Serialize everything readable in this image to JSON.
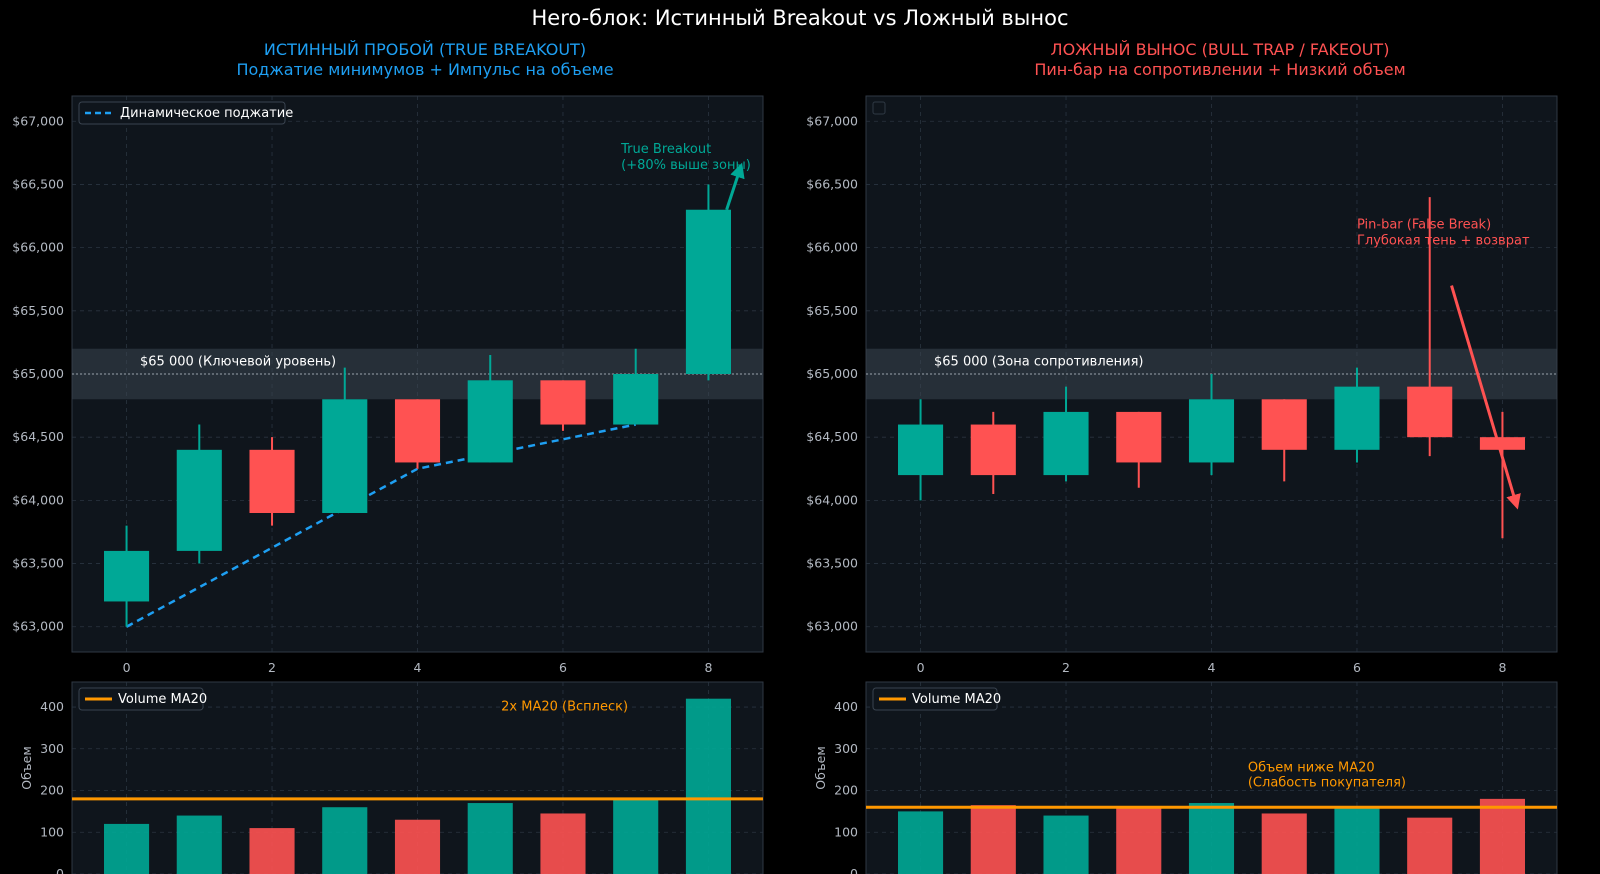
{
  "title": "Hero-блок: Истинный Breakout vs Ложный вынос",
  "colors": {
    "bull": "#00a896",
    "bear": "#ff5252",
    "trend": "#1e9ff2",
    "ma": "#ff9800",
    "panel_bg": "#0f151c",
    "grid": "#2a3440",
    "zone": "#3b4651"
  },
  "chart_data": [
    {
      "type": "candlestick",
      "title": "ИСТИННЫЙ ПРОБОЙ (TRUE BREAKOUT)",
      "subtitle": "Поджатие минимумов + Импульс на объеме",
      "x_ticks": [
        0,
        2,
        4,
        6,
        8
      ],
      "y_ticks": [
        63000,
        63500,
        64000,
        64500,
        65000,
        65500,
        66000,
        66500,
        67000
      ],
      "y_tick_labels": [
        "$63,000",
        "$63,500",
        "$64,000",
        "$64,500",
        "$65,000",
        "$65,500",
        "$66,000",
        "$66,500",
        "$67,000"
      ],
      "xlim": [
        -0.75,
        8.75
      ],
      "ylim": [
        62800,
        67200
      ],
      "candles": [
        {
          "x": 0,
          "open": 63200,
          "high": 63800,
          "low": 63000,
          "close": 63600
        },
        {
          "x": 1,
          "open": 63600,
          "high": 64600,
          "low": 63500,
          "close": 64400
        },
        {
          "x": 2,
          "open": 64400,
          "high": 64500,
          "low": 63800,
          "close": 63900
        },
        {
          "x": 3,
          "open": 63900,
          "high": 65050,
          "low": 63900,
          "close": 64800
        },
        {
          "x": 4,
          "open": 64800,
          "high": 64800,
          "low": 64250,
          "close": 64300
        },
        {
          "x": 5,
          "open": 64300,
          "high": 65150,
          "low": 64300,
          "close": 64950
        },
        {
          "x": 6,
          "open": 64950,
          "high": 64950,
          "low": 64550,
          "close": 64600
        },
        {
          "x": 7,
          "open": 64600,
          "high": 65200,
          "low": 64600,
          "close": 65000
        },
        {
          "x": 8,
          "open": 65000,
          "high": 66500,
          "low": 64950,
          "close": 66300
        }
      ],
      "zone": {
        "low": 64800,
        "high": 65200,
        "level": 65000,
        "label": "$65 000 (Ключевой уровень)"
      },
      "trendline": {
        "label": "Динамическое поджатие",
        "points": [
          [
            0,
            63000
          ],
          [
            4,
            64250
          ],
          [
            7,
            64600
          ]
        ]
      },
      "annotation": {
        "text": [
          "True Breakout",
          "(+80% выше зоны)"
        ],
        "arrow_from": [
          8.25,
          66300
        ],
        "arrow_to": [
          8.45,
          66650
        ]
      },
      "volume": {
        "ylabel": "Объем",
        "y_ticks": [
          0,
          100,
          200,
          300,
          400
        ],
        "ylim": [
          0,
          460
        ],
        "values": [
          120,
          140,
          110,
          160,
          130,
          170,
          145,
          180,
          420
        ],
        "ma_value": 180,
        "ma_label": "Volume MA20",
        "annotation": [
          "2x MA20 (Всплеск)"
        ]
      }
    },
    {
      "type": "candlestick",
      "title": "ЛОЖНЫЙ ВЫНОС (BULL TRAP / FAKEOUT)",
      "subtitle": "Пин-бар на сопротивлении + Низкий объем",
      "x_ticks": [
        0,
        2,
        4,
        6,
        8
      ],
      "y_ticks": [
        63000,
        63500,
        64000,
        64500,
        65000,
        65500,
        66000,
        66500,
        67000
      ],
      "y_tick_labels": [
        "$63,000",
        "$63,500",
        "$64,000",
        "$64,500",
        "$65,000",
        "$65,500",
        "$66,000",
        "$66,500",
        "$67,000"
      ],
      "xlim": [
        -0.75,
        8.75
      ],
      "ylim": [
        62800,
        67200
      ],
      "candles": [
        {
          "x": 0,
          "open": 64200,
          "high": 64800,
          "low": 64000,
          "close": 64600
        },
        {
          "x": 1,
          "open": 64600,
          "high": 64700,
          "low": 64050,
          "close": 64200
        },
        {
          "x": 2,
          "open": 64200,
          "high": 64900,
          "low": 64150,
          "close": 64700
        },
        {
          "x": 3,
          "open": 64700,
          "high": 64700,
          "low": 64100,
          "close": 64300
        },
        {
          "x": 4,
          "open": 64300,
          "high": 65000,
          "low": 64200,
          "close": 64800
        },
        {
          "x": 5,
          "open": 64800,
          "high": 64800,
          "low": 64150,
          "close": 64400
        },
        {
          "x": 6,
          "open": 64400,
          "high": 65050,
          "low": 64300,
          "close": 64900
        },
        {
          "x": 7,
          "open": 64900,
          "high": 66400,
          "low": 64350,
          "close": 64500
        },
        {
          "x": 8,
          "open": 64500,
          "high": 64700,
          "low": 63700,
          "close": 64400
        }
      ],
      "zone": {
        "low": 64800,
        "high": 65200,
        "level": 65000,
        "label": "$65 000 (Зона сопротивления)"
      },
      "annotation": {
        "text": [
          "Pin-bar (False Break)",
          "Глубокая тень + возврат"
        ],
        "arrow_from": [
          7.3,
          65700
        ],
        "arrow_to": [
          8.2,
          63950
        ]
      },
      "volume": {
        "ylabel": "Объем",
        "y_ticks": [
          0,
          100,
          200,
          300,
          400
        ],
        "ylim": [
          0,
          460
        ],
        "values": [
          150,
          165,
          140,
          160,
          170,
          145,
          160,
          135,
          180
        ],
        "ma_value": 160,
        "ma_label": "Volume MA20",
        "annotation": [
          "Объем ниже MA20",
          "(Слабость покупателя)"
        ]
      }
    }
  ]
}
